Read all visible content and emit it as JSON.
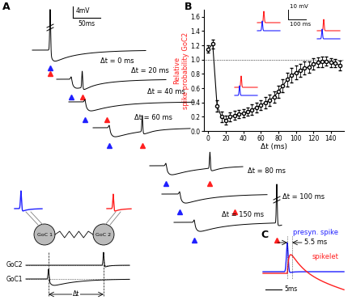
{
  "panel_labels": [
    "A",
    "B",
    "C"
  ],
  "panel_A": {
    "scale_bar": {
      "y": "4mV",
      "x": "50ms"
    },
    "traces": [
      {
        "label": "Δt = 0 ms",
        "dt": 0,
        "spike": true
      },
      {
        "label": "Δt = 20 ms",
        "dt": 20,
        "spike": true
      },
      {
        "label": "Δt = 40 ms",
        "dt": 40,
        "spike": false
      },
      {
        "label": "Δt = 60 ms",
        "dt": 60,
        "spike": true
      },
      {
        "label": "Δt = 80 ms",
        "dt": 80,
        "spike": true
      },
      {
        "label": "Δt = 100 ms",
        "dt": 100,
        "spike": false
      },
      {
        "label": "Δt = 150 ms",
        "dt": 150,
        "spike": true
      }
    ],
    "schematic": {
      "cells": [
        "GoC 1",
        "GoC 2"
      ],
      "rows": [
        "GoC2",
        "GoC1"
      ],
      "interval": "Δt"
    }
  },
  "chart_data": {
    "type": "line",
    "x_label": "Δt (ms)",
    "y_label": "Relative\nspike probability GoC2",
    "x": [
      0,
      5,
      10,
      15,
      20,
      25,
      30,
      35,
      40,
      45,
      50,
      55,
      60,
      65,
      70,
      75,
      80,
      85,
      90,
      95,
      100,
      105,
      110,
      115,
      120,
      125,
      130,
      135,
      140,
      145,
      150
    ],
    "values": [
      1.15,
      1.22,
      0.35,
      0.2,
      0.15,
      0.2,
      0.22,
      0.24,
      0.25,
      0.27,
      0.3,
      0.33,
      0.36,
      0.4,
      0.43,
      0.48,
      0.55,
      0.63,
      0.72,
      0.78,
      0.82,
      0.85,
      0.88,
      0.9,
      0.94,
      0.96,
      0.97,
      0.98,
      0.96,
      0.95,
      0.92
    ],
    "errors": [
      0.05,
      0.06,
      0.08,
      0.07,
      0.06,
      0.06,
      0.06,
      0.06,
      0.06,
      0.06,
      0.07,
      0.07,
      0.07,
      0.08,
      0.08,
      0.08,
      0.09,
      0.09,
      0.1,
      0.1,
      0.1,
      0.09,
      0.09,
      0.08,
      0.08,
      0.07,
      0.07,
      0.06,
      0.06,
      0.06,
      0.07
    ],
    "color": "#000000",
    "marker": "o",
    "line_style": "solid",
    "reference_line": 1.0,
    "xlim": [
      -5,
      155
    ],
    "xticks": [
      0,
      20,
      40,
      60,
      80,
      100,
      120,
      140
    ],
    "ylim": [
      0.0,
      1.7
    ],
    "yticks": [
      0.0,
      0.2,
      0.4,
      0.6,
      0.8,
      1.0,
      1.2,
      1.4,
      1.6
    ],
    "inset_scale_bar": {
      "y": "10 mV",
      "x": "100 ms"
    }
  },
  "panel_C": {
    "series": [
      {
        "name": "presyn. spike",
        "color": "#2020ff"
      },
      {
        "name": "spikelet",
        "color": "#ff2020"
      }
    ],
    "delay": "5.5 ms",
    "scale_bar": "5ms"
  }
}
